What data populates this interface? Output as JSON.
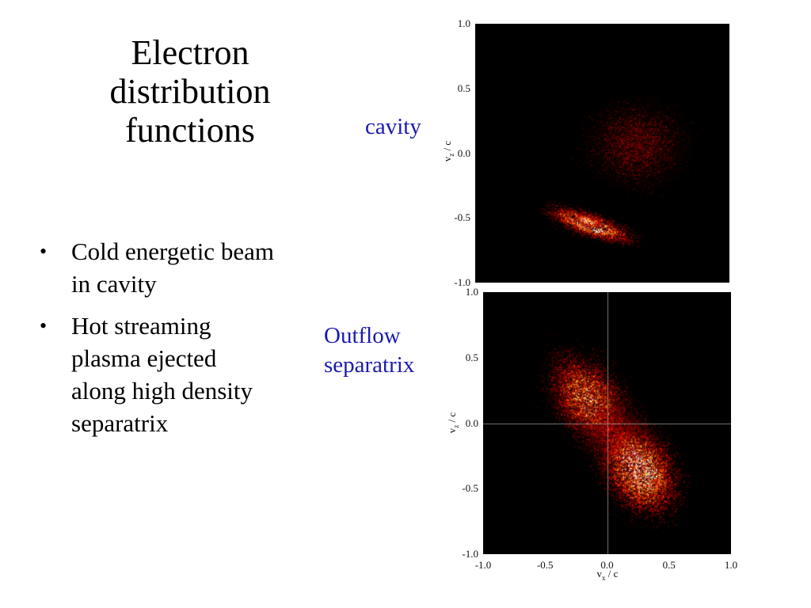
{
  "slide": {
    "title": "Electron distribution functions",
    "bullet_marker": "•",
    "bullets": [
      "Cold energetic beam\nin cavity",
      "Hot streaming\nplasma ejected\nalong high density\nseparatrix"
    ],
    "colors": {
      "text": "#000000",
      "annotation_blue": "#1b1bad",
      "plot_background": "#000000",
      "crosshair": "#a8a296",
      "heat_low": "#550a05",
      "heat_mid": "#cc2200",
      "heat_high": "#ffa500",
      "heat_peak": "#ffffff"
    }
  },
  "chart_data": [
    {
      "type": "scatter",
      "name": "cavity-distribution",
      "title": "cavity",
      "ylabel": {
        "base": "v",
        "sub": "z",
        "rest": " / c"
      },
      "xlim": [
        -1.0,
        1.0
      ],
      "ylim": [
        -1.0,
        1.0
      ],
      "yticks": [
        "1.0",
        "0.5",
        "0.0",
        "-0.5",
        "-1.0"
      ],
      "xticks": [],
      "background": "#000000",
      "colormap": "hot",
      "crosshair": false,
      "crosshair_color": "#a8a296",
      "clusters": [
        {
          "name": "diffuse-hot-cloud",
          "cx": 0.27,
          "cy": 0.07,
          "sx": 0.21,
          "sy": 0.18,
          "angle_deg": 0,
          "count": 3000,
          "intensity": 0.33
        },
        {
          "name": "cold-beam",
          "cx": -0.1,
          "cy": -0.55,
          "sx": 0.165,
          "sy": 0.042,
          "angle_deg": -18,
          "count": 3000,
          "intensity": 1.0
        },
        {
          "name": "cold-beam-core",
          "cx": -0.12,
          "cy": -0.52,
          "sx": 0.06,
          "sy": 0.02,
          "angle_deg": -18,
          "count": 800,
          "intensity": 1.0
        }
      ]
    },
    {
      "type": "scatter",
      "name": "outflow-separatrix-distribution",
      "title": "Outflow separatrix",
      "xlabel": {
        "base": "v",
        "sub": "x",
        "rest": " / c"
      },
      "ylabel": {
        "base": "v",
        "sub": "z",
        "rest": " / c"
      },
      "xlim": [
        -1.0,
        1.0
      ],
      "ylim": [
        -1.0,
        1.0
      ],
      "yticks": [
        "1.0",
        "0.5",
        "0.0",
        "-0.5",
        "-1.0"
      ],
      "xticks": [
        "-1.0",
        "-0.5",
        "0.0",
        "0.5",
        "1.0"
      ],
      "background": "#000000",
      "colormap": "hot",
      "crosshair": true,
      "crosshair_color": "#a8a296",
      "clusters": [
        {
          "name": "upper-left-lobe",
          "cx": -0.15,
          "cy": 0.18,
          "sx": 0.2,
          "sy": 0.13,
          "angle_deg": -52,
          "count": 6000,
          "intensity": 0.8
        },
        {
          "name": "lower-right-lobe",
          "cx": 0.25,
          "cy": -0.34,
          "sx": 0.19,
          "sy": 0.13,
          "angle_deg": -55,
          "count": 8000,
          "intensity": 1.0
        },
        {
          "name": "central-bridge",
          "cx": 0.05,
          "cy": -0.08,
          "sx": 0.26,
          "sy": 0.13,
          "angle_deg": -52,
          "count": 3000,
          "intensity": 0.45
        }
      ]
    }
  ]
}
